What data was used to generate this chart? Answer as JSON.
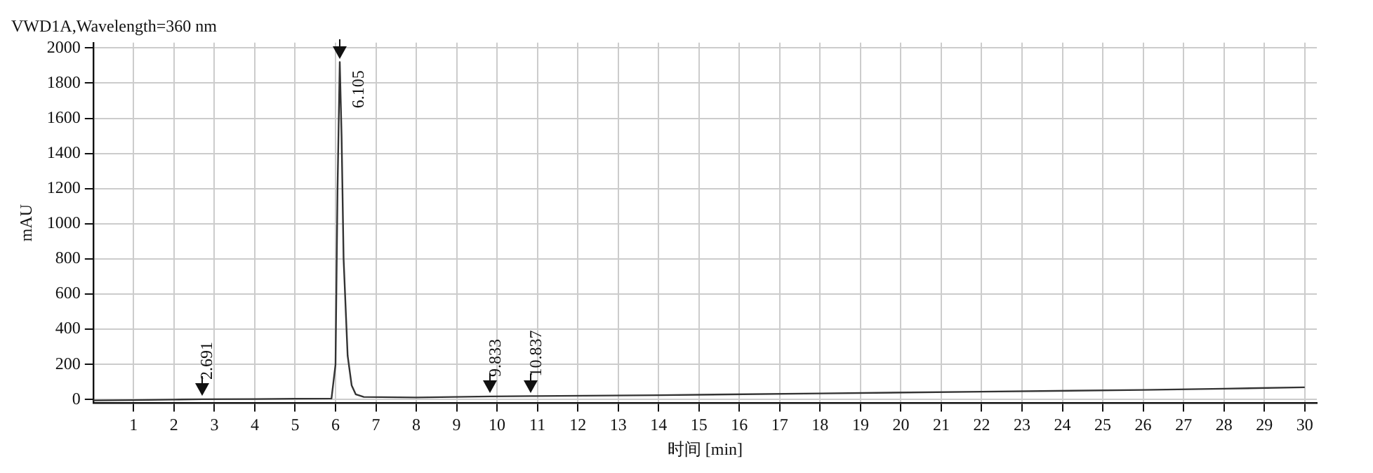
{
  "chart_data": {
    "type": "line",
    "title": "VWD1A,Wavelength=360 nm",
    "xlabel": "时间 [min]",
    "ylabel": "mAU",
    "x": [
      0,
      1,
      2,
      2.691,
      4,
      5,
      5.9,
      6.0,
      6.05,
      6.105,
      6.15,
      6.2,
      6.3,
      6.4,
      6.5,
      6.7,
      8,
      9.833,
      10.837,
      14,
      18,
      22,
      26,
      28,
      30
    ],
    "series": [
      {
        "color": "#333333",
        "values": [
          -5,
          -3,
          0,
          2,
          3,
          5,
          6,
          200,
          1200,
          1920,
          1500,
          800,
          250,
          80,
          30,
          15,
          12,
          18,
          20,
          25,
          35,
          45,
          55,
          62,
          70
        ]
      }
    ],
    "xlim": [
      0,
      30.3
    ],
    "xticks": [
      1,
      2,
      3,
      4,
      5,
      6,
      7,
      8,
      9,
      10,
      11,
      12,
      13,
      14,
      15,
      16,
      17,
      18,
      19,
      20,
      21,
      22,
      23,
      24,
      25,
      26,
      27,
      28,
      29,
      30
    ],
    "ylim": [
      -20,
      2030
    ],
    "yticks": [
      0,
      200,
      400,
      600,
      800,
      1000,
      1200,
      1400,
      1600,
      1800,
      2000
    ],
    "grid": true,
    "legend": false,
    "marker": "none",
    "line_style": "solid",
    "annotations": [
      {
        "text": "2.691",
        "x": 2.691,
        "y": 2
      },
      {
        "text": "6.105",
        "x": 6.105,
        "y": 1920
      },
      {
        "text": "9.833",
        "x": 9.833,
        "y": 18
      },
      {
        "text": "10.837",
        "x": 10.837,
        "y": 20
      }
    ]
  }
}
